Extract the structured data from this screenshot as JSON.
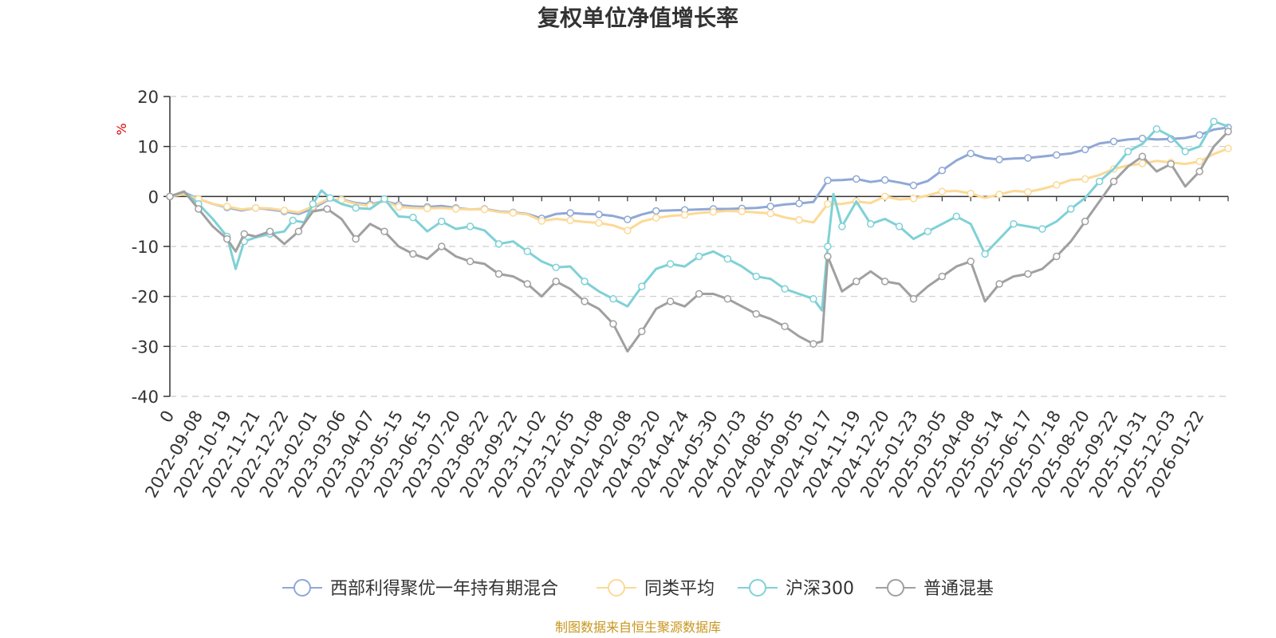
{
  "chart_data": {
    "type": "line",
    "title": "复权单位净值增长率",
    "ylabel": "%",
    "ylim": [
      -40,
      20
    ],
    "yticks": [
      -40,
      -30,
      -20,
      -10,
      0,
      10,
      20
    ],
    "xlabel": "",
    "x_tick_labels": [
      "0",
      "2022-09-08",
      "2022-10-19",
      "2022-11-21",
      "2022-12-22",
      "2023-02-01",
      "2023-03-06",
      "2023-04-07",
      "2023-05-15",
      "2023-06-15",
      "2023-07-20",
      "2023-08-22",
      "2023-09-22",
      "2023-11-02",
      "2023-12-05",
      "2024-01-08",
      "2024-02-08",
      "2024-03-20",
      "2024-04-24",
      "2024-05-30",
      "2024-07-03",
      "2024-08-05",
      "2024-09-05",
      "2024-10-17",
      "2024-11-19",
      "2024-12-20",
      "2025-01-23",
      "2025-03-05",
      "2025-04-08",
      "2025-05-14",
      "2025-06-17",
      "2025-07-18",
      "2025-08-20",
      "2025-09-22",
      "2025-10-31",
      "2025-12-03",
      "2026-01-22"
    ],
    "x_range": [
      0,
      37
    ],
    "grid": true,
    "legend_position": "bottom",
    "series": [
      {
        "name": "西部利得聚优一年持有期混合",
        "color": "#8fa8d6",
        "points": [
          [
            0,
            0
          ],
          [
            0.5,
            0.8
          ],
          [
            1,
            -0.5
          ],
          [
            1.5,
            -1.5
          ],
          [
            2,
            -2.2
          ],
          [
            2.5,
            -2.8
          ],
          [
            3,
            -2.3
          ],
          [
            3.5,
            -2.6
          ],
          [
            4,
            -3.0
          ],
          [
            4.5,
            -3.5
          ],
          [
            5,
            -2.4
          ],
          [
            5.5,
            -0.8
          ],
          [
            6,
            -0.6
          ],
          [
            6.5,
            -1.3
          ],
          [
            7,
            -1.6
          ],
          [
            7.5,
            -0.9
          ],
          [
            8,
            -1.7
          ],
          [
            8.5,
            -2.0
          ],
          [
            9,
            -2.1
          ],
          [
            9.5,
            -1.9
          ],
          [
            10,
            -2.3
          ],
          [
            10.5,
            -2.6
          ],
          [
            11,
            -2.5
          ],
          [
            11.5,
            -3.0
          ],
          [
            12,
            -3.2
          ],
          [
            12.5,
            -3.5
          ],
          [
            13,
            -4.4
          ],
          [
            13.5,
            -3.5
          ],
          [
            14,
            -3.3
          ],
          [
            14.5,
            -3.5
          ],
          [
            15,
            -3.6
          ],
          [
            15.5,
            -3.9
          ],
          [
            16,
            -4.6
          ],
          [
            16.5,
            -3.6
          ],
          [
            17,
            -2.9
          ],
          [
            17.5,
            -2.8
          ],
          [
            18,
            -2.7
          ],
          [
            18.5,
            -2.6
          ],
          [
            19,
            -2.5
          ],
          [
            19.5,
            -2.5
          ],
          [
            20,
            -2.4
          ],
          [
            20.5,
            -2.3
          ],
          [
            21,
            -2.0
          ],
          [
            21.5,
            -1.6
          ],
          [
            22,
            -1.4
          ],
          [
            22.5,
            -1.1
          ],
          [
            23,
            3.2
          ],
          [
            23.5,
            3.3
          ],
          [
            24,
            3.5
          ],
          [
            24.5,
            2.9
          ],
          [
            25,
            3.3
          ],
          [
            25.5,
            2.8
          ],
          [
            26,
            2.2
          ],
          [
            26.5,
            3.1
          ],
          [
            27,
            5.2
          ],
          [
            27.5,
            7.2
          ],
          [
            28,
            8.6
          ],
          [
            28.5,
            7.7
          ],
          [
            29,
            7.4
          ],
          [
            29.5,
            7.6
          ],
          [
            30,
            7.7
          ],
          [
            30.5,
            8.0
          ],
          [
            31,
            8.3
          ],
          [
            31.5,
            8.6
          ],
          [
            32,
            9.4
          ],
          [
            32.5,
            10.6
          ],
          [
            33,
            11.0
          ],
          [
            33.5,
            11.4
          ],
          [
            34,
            11.6
          ],
          [
            34.5,
            11.4
          ],
          [
            35,
            11.5
          ],
          [
            35.5,
            11.7
          ],
          [
            36,
            12.3
          ],
          [
            36.5,
            13.4
          ],
          [
            37,
            13.8
          ]
        ]
      },
      {
        "name": "同类平均",
        "color": "#fcd996",
        "points": [
          [
            0,
            0
          ],
          [
            0.5,
            0.4
          ],
          [
            1,
            -0.5
          ],
          [
            1.5,
            -1.5
          ],
          [
            2,
            -2.0
          ],
          [
            2.5,
            -2.6
          ],
          [
            3,
            -2.3
          ],
          [
            3.5,
            -2.4
          ],
          [
            4,
            -2.8
          ],
          [
            4.5,
            -3.2
          ],
          [
            5,
            -2.0
          ],
          [
            5.5,
            -0.6
          ],
          [
            6,
            -0.7
          ],
          [
            6.5,
            -1.5
          ],
          [
            7,
            -1.9
          ],
          [
            7.5,
            -0.9
          ],
          [
            8,
            -2.1
          ],
          [
            8.5,
            -2.3
          ],
          [
            9,
            -2.4
          ],
          [
            9.5,
            -2.3
          ],
          [
            10,
            -2.5
          ],
          [
            10.5,
            -2.6
          ],
          [
            11,
            -2.6
          ],
          [
            11.5,
            -3.1
          ],
          [
            12,
            -3.3
          ],
          [
            12.5,
            -3.6
          ],
          [
            13,
            -4.9
          ],
          [
            13.5,
            -4.5
          ],
          [
            14,
            -4.8
          ],
          [
            14.5,
            -5.1
          ],
          [
            15,
            -5.3
          ],
          [
            15.5,
            -5.8
          ],
          [
            16,
            -6.8
          ],
          [
            16.5,
            -5.0
          ],
          [
            17,
            -4.3
          ],
          [
            17.5,
            -3.9
          ],
          [
            18,
            -3.7
          ],
          [
            18.5,
            -3.3
          ],
          [
            19,
            -3.1
          ],
          [
            19.5,
            -2.9
          ],
          [
            20,
            -3.0
          ],
          [
            20.5,
            -3.2
          ],
          [
            21,
            -3.4
          ],
          [
            21.5,
            -4.2
          ],
          [
            22,
            -4.7
          ],
          [
            22.5,
            -5.2
          ],
          [
            23,
            -1.5
          ],
          [
            23.5,
            -1.5
          ],
          [
            24,
            -1.0
          ],
          [
            24.5,
            -1.3
          ],
          [
            25,
            0.0
          ],
          [
            25.5,
            -0.6
          ],
          [
            26,
            -0.4
          ],
          [
            26.5,
            0.2
          ],
          [
            27,
            1.0
          ],
          [
            27.5,
            1.1
          ],
          [
            28,
            0.6
          ],
          [
            28.5,
            -0.3
          ],
          [
            29,
            0.4
          ],
          [
            29.5,
            1.1
          ],
          [
            30,
            0.9
          ],
          [
            30.5,
            1.5
          ],
          [
            31,
            2.3
          ],
          [
            31.5,
            3.3
          ],
          [
            32,
            3.5
          ],
          [
            32.5,
            4.3
          ],
          [
            33,
            5.5
          ],
          [
            33.5,
            6.2
          ],
          [
            34,
            6.6
          ],
          [
            34.5,
            7.1
          ],
          [
            35,
            6.8
          ],
          [
            35.5,
            6.5
          ],
          [
            36,
            7.0
          ],
          [
            36.5,
            8.5
          ],
          [
            37,
            9.6
          ]
        ]
      },
      {
        "name": "沪深300",
        "color": "#7fd1d6",
        "points": [
          [
            0,
            0
          ],
          [
            0.5,
            0.9
          ],
          [
            1,
            -1.5
          ],
          [
            1.5,
            -4.5
          ],
          [
            2,
            -8.0
          ],
          [
            2.3,
            -14.5
          ],
          [
            2.6,
            -9.0
          ],
          [
            3,
            -8.2
          ],
          [
            3.5,
            -7.5
          ],
          [
            4,
            -7.0
          ],
          [
            4.3,
            -4.8
          ],
          [
            4.7,
            -5.2
          ],
          [
            5,
            -1.5
          ],
          [
            5.3,
            1.2
          ],
          [
            5.6,
            -0.3
          ],
          [
            6,
            -1.5
          ],
          [
            6.5,
            -2.3
          ],
          [
            7,
            -2.5
          ],
          [
            7.5,
            -0.5
          ],
          [
            8,
            -4.0
          ],
          [
            8.5,
            -4.2
          ],
          [
            9,
            -7.0
          ],
          [
            9.5,
            -5.0
          ],
          [
            10,
            -6.5
          ],
          [
            10.5,
            -6.0
          ],
          [
            11,
            -6.8
          ],
          [
            11.5,
            -9.5
          ],
          [
            12,
            -9.0
          ],
          [
            12.5,
            -11.0
          ],
          [
            13,
            -13.0
          ],
          [
            13.5,
            -14.2
          ],
          [
            14,
            -14.0
          ],
          [
            14.5,
            -17.0
          ],
          [
            15,
            -19.0
          ],
          [
            15.5,
            -20.5
          ],
          [
            16,
            -22.0
          ],
          [
            16.5,
            -18.0
          ],
          [
            17,
            -14.5
          ],
          [
            17.5,
            -13.5
          ],
          [
            18,
            -14.0
          ],
          [
            18.5,
            -12.0
          ],
          [
            19,
            -11.0
          ],
          [
            19.5,
            -12.5
          ],
          [
            20,
            -14.0
          ],
          [
            20.5,
            -16.0
          ],
          [
            21,
            -16.5
          ],
          [
            21.5,
            -18.5
          ],
          [
            22,
            -19.5
          ],
          [
            22.5,
            -20.5
          ],
          [
            22.8,
            -22.8
          ],
          [
            23,
            -10.0
          ],
          [
            23.2,
            0.5
          ],
          [
            23.5,
            -6.0
          ],
          [
            24,
            -1.0
          ],
          [
            24.5,
            -5.5
          ],
          [
            25,
            -4.5
          ],
          [
            25.5,
            -6.0
          ],
          [
            26,
            -8.5
          ],
          [
            26.5,
            -7.0
          ],
          [
            27,
            -5.5
          ],
          [
            27.5,
            -4.0
          ],
          [
            28,
            -5.5
          ],
          [
            28.5,
            -11.5
          ],
          [
            29,
            -8.5
          ],
          [
            29.5,
            -5.5
          ],
          [
            30,
            -6.0
          ],
          [
            30.5,
            -6.5
          ],
          [
            31,
            -5.0
          ],
          [
            31.5,
            -2.5
          ],
          [
            32,
            -0.3
          ],
          [
            32.5,
            3.0
          ],
          [
            33,
            5.5
          ],
          [
            33.5,
            9.0
          ],
          [
            34,
            10.5
          ],
          [
            34.5,
            13.5
          ],
          [
            35,
            12.0
          ],
          [
            35.5,
            9.0
          ],
          [
            36,
            10.0
          ],
          [
            36.5,
            15.0
          ],
          [
            37,
            14.0
          ]
        ]
      },
      {
        "name": "普通混基",
        "color": "#a0a0a0",
        "points": [
          [
            0,
            0
          ],
          [
            0.5,
            1.0
          ],
          [
            1,
            -2.5
          ],
          [
            1.5,
            -6.0
          ],
          [
            2,
            -8.5
          ],
          [
            2.3,
            -11.0
          ],
          [
            2.6,
            -7.5
          ],
          [
            3,
            -8.0
          ],
          [
            3.5,
            -7.0
          ],
          [
            4,
            -9.5
          ],
          [
            4.5,
            -7.0
          ],
          [
            5,
            -3.0
          ],
          [
            5.5,
            -2.5
          ],
          [
            6,
            -4.5
          ],
          [
            6.5,
            -8.5
          ],
          [
            7,
            -5.5
          ],
          [
            7.5,
            -7.0
          ],
          [
            8,
            -10.0
          ],
          [
            8.5,
            -11.5
          ],
          [
            9,
            -12.5
          ],
          [
            9.5,
            -10.0
          ],
          [
            10,
            -12.0
          ],
          [
            10.5,
            -13.0
          ],
          [
            11,
            -13.5
          ],
          [
            11.5,
            -15.5
          ],
          [
            12,
            -16.0
          ],
          [
            12.5,
            -17.5
          ],
          [
            13,
            -20.0
          ],
          [
            13.5,
            -17.0
          ],
          [
            14,
            -18.5
          ],
          [
            14.5,
            -21.0
          ],
          [
            15,
            -22.5
          ],
          [
            15.5,
            -25.5
          ],
          [
            16,
            -31.0
          ],
          [
            16.5,
            -27.0
          ],
          [
            17,
            -22.5
          ],
          [
            17.5,
            -21.0
          ],
          [
            18,
            -22.0
          ],
          [
            18.5,
            -19.5
          ],
          [
            19,
            -19.5
          ],
          [
            19.5,
            -20.5
          ],
          [
            20,
            -22.0
          ],
          [
            20.5,
            -23.5
          ],
          [
            21,
            -24.5
          ],
          [
            21.5,
            -26.0
          ],
          [
            22,
            -28.0
          ],
          [
            22.5,
            -29.5
          ],
          [
            22.8,
            -29.0
          ],
          [
            23,
            -12.0
          ],
          [
            23.5,
            -19.0
          ],
          [
            24,
            -17.0
          ],
          [
            24.5,
            -15.0
          ],
          [
            25,
            -17.0
          ],
          [
            25.5,
            -17.5
          ],
          [
            26,
            -20.5
          ],
          [
            26.5,
            -18.0
          ],
          [
            27,
            -16.0
          ],
          [
            27.5,
            -14.0
          ],
          [
            28,
            -13.0
          ],
          [
            28.5,
            -21.0
          ],
          [
            29,
            -17.5
          ],
          [
            29.5,
            -16.0
          ],
          [
            30,
            -15.5
          ],
          [
            30.5,
            -14.5
          ],
          [
            31,
            -12.0
          ],
          [
            31.5,
            -9.0
          ],
          [
            32,
            -5.0
          ],
          [
            32.5,
            -1.0
          ],
          [
            33,
            3.0
          ],
          [
            33.5,
            6.0
          ],
          [
            34,
            8.0
          ],
          [
            34.5,
            5.0
          ],
          [
            35,
            6.5
          ],
          [
            35.5,
            2.0
          ],
          [
            36,
            5.0
          ],
          [
            36.5,
            10.0
          ],
          [
            37,
            13.0
          ]
        ]
      }
    ]
  },
  "footer": {
    "source": "制图数据来自恒生聚源数据库",
    "source_color": "#c8961e"
  },
  "colors": {
    "axis": "#333333",
    "grid": "#cccccc",
    "ylabel": "#e00000"
  }
}
